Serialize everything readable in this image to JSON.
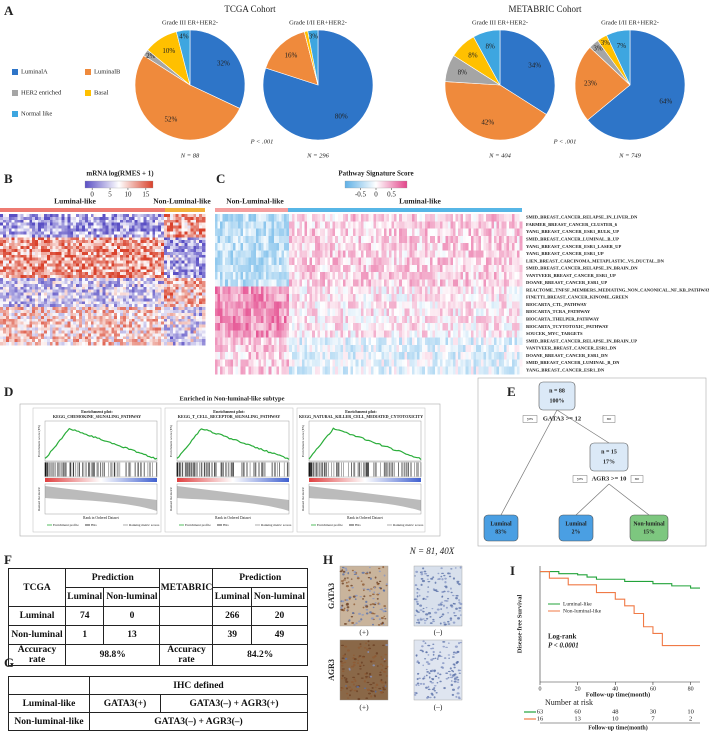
{
  "panel_labels": [
    "A",
    "B",
    "C",
    "D",
    "E",
    "F",
    "G",
    "H",
    "I"
  ],
  "a": {
    "cohorts": [
      "TCGA Cohort",
      "METABRIC Cohort"
    ],
    "legend": [
      {
        "name": "LuminalA",
        "color": "#2e75c8"
      },
      {
        "name": "LuminalB",
        "color": "#ef8a3c"
      },
      {
        "name": "HER2 enriched",
        "color": "#a5a5a5"
      },
      {
        "name": "Basal",
        "color": "#ffc000"
      },
      {
        "name": "Normal like",
        "color": "#3ea6e0"
      }
    ],
    "pies": [
      {
        "type": "pie",
        "title": "Grade III ER+HER2-",
        "values": [
          32,
          52,
          2,
          10,
          4
        ],
        "value_labels": [
          "32%",
          "52%",
          "2%",
          "10%",
          "4%"
        ],
        "n": "N = 88"
      },
      {
        "type": "pie",
        "title": "Grade I/II ER+HER2-",
        "values": [
          80,
          16,
          0,
          1,
          3
        ],
        "value_labels": [
          "80%",
          "16%",
          null,
          null,
          "3%"
        ],
        "n": "N = 296"
      },
      {
        "type": "pie",
        "title": "Grade III ER+HER2-",
        "values": [
          34,
          42,
          8,
          8,
          8
        ],
        "value_labels": [
          "34%",
          "42%",
          "8%",
          "8%",
          "8%"
        ],
        "n": "N = 404"
      },
      {
        "type": "pie",
        "title": "Grade I/II ER+HER2-",
        "values": [
          64,
          23,
          3,
          3,
          7
        ],
        "value_labels": [
          "64%",
          "23%",
          "3%",
          "3%",
          "7%"
        ],
        "n": "N = 749"
      }
    ],
    "p_values": [
      "P < .001",
      "P < .001"
    ]
  },
  "b": {
    "legend_title": "mRNA log(RMES + 1)",
    "colorbar": {
      "lim": [
        -2,
        17
      ],
      "ticks": [
        0,
        5,
        10,
        15
      ],
      "colors": [
        "#5a4fc4",
        "#ffffff",
        "#d9412b"
      ]
    },
    "groups": [
      "Luminal-like",
      "Non-Luminal-like"
    ],
    "group_colors": [
      "#ee7b72",
      "#f2b03c"
    ]
  },
  "c": {
    "legend_title": "Pathway Signature Score",
    "colorbar": {
      "lim": [
        -1,
        1
      ],
      "ticks": [
        -0.5,
        0,
        0.5
      ],
      "colors": [
        "#5fb0e6",
        "#ffffff",
        "#e3458a"
      ]
    },
    "groups": [
      "Non-Luminal-like",
      "Luminal-like"
    ],
    "group_colors": [
      "#f4a0a0",
      "#57b6e6"
    ],
    "pathways": [
      "SMID_BREAST_CANCER_RELAPSE_IN_LIVER_DN",
      "FARMER_BREAST_CANCER_CLUSTER_6",
      "YANG_BREAST_CANCER_ESR1_BULK_UP",
      "SMID_BREAST_CANCER_LUMINAL_B_UP",
      "YANG_BREAST_CANCER_ESR1_LASER_UP",
      "YANG_BREAST_CANCER_ESR1_UP",
      "LIEN_BREAST_CARCINOMA_METAPLASTIC_VS_DUCTAL_DN",
      "SMID_BREAST_CANCER_RELAPSE_IN_BRAIN_DN",
      "VANTVEER_BREAST_CANCER_ESR1_UP",
      "DOANE_BREAST_CANCER_ESR1_UP",
      "REACTOME_TNFSF_MEMBERS_MEDIATING_NON_CANONICAL_NF_KB_PATHWAY",
      "FINETTI_BREAST_CANCER_KINOME_GREEN",
      "BIOCARTA_CTL_PATHWAY",
      "BIOCARTA_TCRA_PATHWAY",
      "BIOCARTA_THELPER_PATHWAY",
      "BIOCARTA_TCYTOTOXIC_PATHWAY",
      "SOUCEK_MYC_TARGETS",
      "SMID_BREAST_CANCER_RELAPSE_IN_BRAIN_UP",
      "VANTVEER_BREAST_CANCER_ESR1_DN",
      "DOANE_BREAST_CANCER_ESR1_DN",
      "SMID_BREAST_CANCER_LUMINAL_B_DN",
      "YANG_BREAST_CANCER_ESR1_DN"
    ]
  },
  "d": {
    "title": "Enriched in Non-luminal-like subtype",
    "plot_heading": "Enrichment plot:",
    "plots": [
      "KEGG_CHEMOKINE_SIGNALING_PATHWAY",
      "KEGG_T_CELL_RECEPTOR_SIGNALING_PATHWAY",
      "KEGG_NATURAL_KILLER_CELL_MEDIATED_CYTOTOXICITY"
    ],
    "y_label": "Enrichment score (ES)",
    "y2_label": "Ranked list metric",
    "x_label": "Rank in Ordered Dataset",
    "legend": [
      "Enrichment profile",
      "Hits",
      "Ranking metric scores"
    ]
  },
  "e": {
    "root": {
      "n": "n = 88",
      "pct": "100%"
    },
    "split1": {
      "rule": "GATA3 >= 12",
      "yes": "yes",
      "no": "no"
    },
    "node": {
      "n": "n = 15",
      "pct": "17%"
    },
    "split2": {
      "rule": "AGR3 >= 10",
      "yes": "yes",
      "no": "no"
    },
    "leaves": [
      {
        "label": "Luminal",
        "pct": "83%",
        "color": "#4a9fe3"
      },
      {
        "label": "Luminal",
        "pct": "2%",
        "color": "#4a9fe3"
      },
      {
        "label": "Non-luminal",
        "pct": "15%",
        "color": "#7dc77f"
      }
    ]
  },
  "f": {
    "cohorts": [
      "TCGA",
      "METABRIC"
    ],
    "prediction": "Prediction",
    "classes": [
      "Luminal",
      "Non-luminal"
    ],
    "tcga": [
      [
        "74",
        "0"
      ],
      [
        "1",
        "13"
      ]
    ],
    "metabric": [
      [
        "266",
        "20"
      ],
      [
        "39",
        "49"
      ]
    ],
    "accuracy_label": "Accuracy rate",
    "accuracy": [
      "98.8%",
      "84.2%"
    ]
  },
  "g": {
    "header": "IHC defined",
    "rows": [
      [
        "Luminal-like",
        "GATA3(+)",
        "GATA3(–) + AGR3(+)"
      ],
      [
        "Non-luminal-like",
        "GATA3(–) + AGR3(–)"
      ]
    ]
  },
  "h": {
    "title": "N = 81, 40X",
    "markers": [
      "GATA3",
      "AGR3"
    ],
    "columns": [
      "(+)",
      "(–)"
    ]
  },
  "i": {
    "type": "line",
    "ylabel": "Disease-free Survival",
    "xlabel": "Follow-up time(month)",
    "xlim": [
      0,
      85
    ],
    "ylim": [
      0,
      1.05
    ],
    "xticks": [
      0,
      20,
      40,
      60,
      80
    ],
    "series": [
      {
        "name": "Luminal-like",
        "color": "#22a33a",
        "x": [
          0,
          10,
          20,
          25,
          30,
          45,
          60,
          70,
          80,
          85
        ],
        "y": [
          1,
          0.98,
          0.97,
          0.95,
          0.93,
          0.91,
          0.89,
          0.87,
          0.85,
          0.85
        ],
        "at_risk": [
          63,
          60,
          48,
          30,
          10
        ]
      },
      {
        "name": "Non-luminal-like",
        "color": "#f07a46",
        "x": [
          0,
          5,
          15,
          30,
          40,
          45,
          50,
          55,
          60,
          65,
          85
        ],
        "y": [
          1,
          0.94,
          0.88,
          0.81,
          0.75,
          0.69,
          0.62,
          0.5,
          0.44,
          0.33,
          0.33
        ],
        "at_risk": [
          16,
          13,
          10,
          7,
          2
        ]
      }
    ],
    "test": "Log-rank",
    "p_value": "P < 0.0001",
    "risk_title": "Number at risk"
  }
}
